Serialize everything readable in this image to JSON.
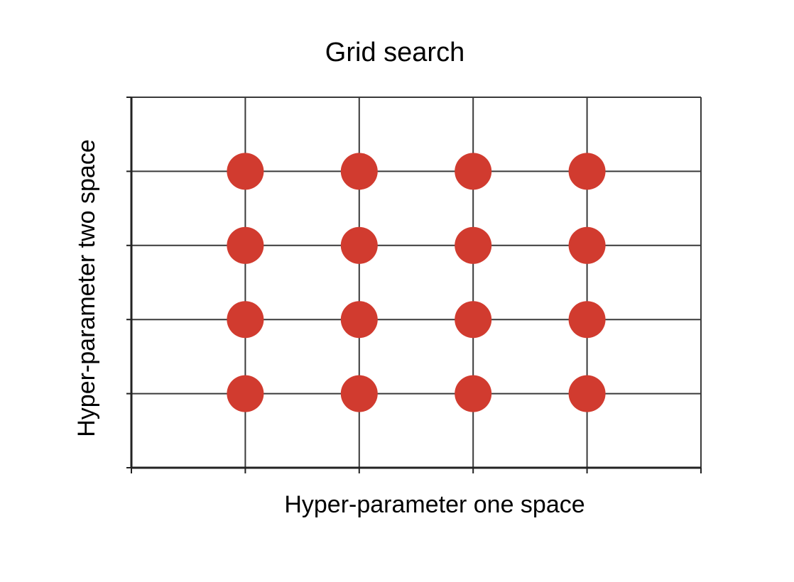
{
  "title": "Grid search",
  "x_axis_label": "Hyper-parameter one space",
  "y_axis_label": "Hyper-parameter two space",
  "colors": {
    "point": "#d13b2f",
    "grid": "#3a3a3a",
    "frame": "#222222"
  },
  "chart_data": {
    "type": "scatter",
    "title": "Grid search",
    "xlabel": "Hyper-parameter one space",
    "ylabel": "Hyper-parameter two space",
    "xlim": [
      0,
      5
    ],
    "ylim": [
      0,
      5
    ],
    "grid": true,
    "points": [
      {
        "x": 1,
        "y": 1
      },
      {
        "x": 2,
        "y": 1
      },
      {
        "x": 3,
        "y": 1
      },
      {
        "x": 4,
        "y": 1
      },
      {
        "x": 1,
        "y": 2
      },
      {
        "x": 2,
        "y": 2
      },
      {
        "x": 3,
        "y": 2
      },
      {
        "x": 4,
        "y": 2
      },
      {
        "x": 1,
        "y": 3
      },
      {
        "x": 2,
        "y": 3
      },
      {
        "x": 3,
        "y": 3
      },
      {
        "x": 4,
        "y": 3
      },
      {
        "x": 1,
        "y": 4
      },
      {
        "x": 2,
        "y": 4
      },
      {
        "x": 3,
        "y": 4
      },
      {
        "x": 4,
        "y": 4
      }
    ]
  }
}
